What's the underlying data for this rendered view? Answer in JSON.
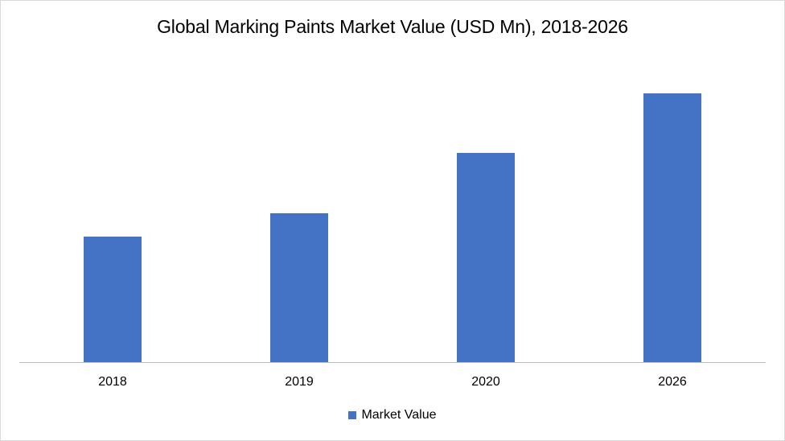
{
  "chart_data": {
    "type": "bar",
    "title": "Global Marking Paints Market Value (USD Mn), 2018-2026",
    "xlabel": "",
    "ylabel": "",
    "categories": [
      "2018",
      "2019",
      "2020",
      "2026"
    ],
    "series": [
      {
        "name": "Market Value",
        "color": "#4472c4",
        "values": [
          156,
          185,
          260,
          334
        ]
      }
    ],
    "values_note": "No y-axis or data labels shown; values are relative bar heights (px) read from the image",
    "grid": false,
    "legend_position": "bottom"
  },
  "legend": {
    "label": "Market Value"
  },
  "colors": {
    "bar": "#4472c4",
    "axis": "#bfbfbf",
    "border": "#d9d9d9"
  }
}
